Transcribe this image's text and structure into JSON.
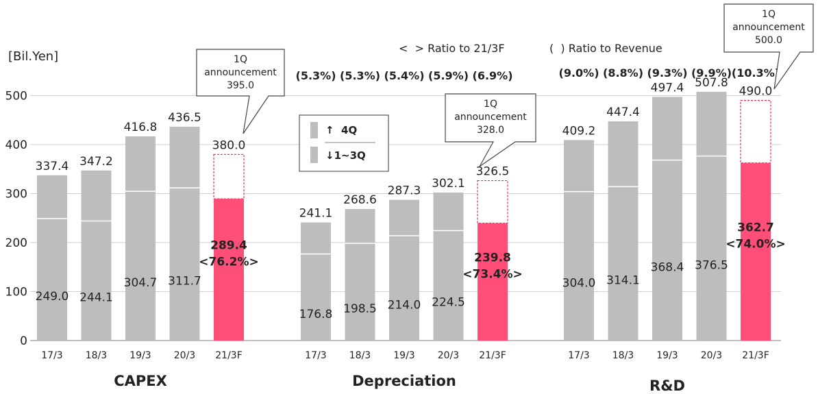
{
  "chart_data": {
    "type": "bar",
    "unit_label": "[Bil.Yen]",
    "y_ticks": [
      "0",
      "100",
      "200",
      "300",
      "400",
      "500"
    ],
    "ylim": [
      0,
      530
    ],
    "grid": true,
    "colors": {
      "past": "#bdbdbd",
      "forecast": "#ff4f79",
      "divider": "#ffffff",
      "forecast_outline": "#e0304a"
    },
    "legend": {
      "ratio_prev": "<  > Ratio to 21/3F",
      "ratio_rev": "(  ) Ratio to Revenue",
      "upper": "↑  4Q",
      "lower": "↓1~3Q"
    },
    "groups": [
      {
        "name": "CAPEX",
        "categories": [
          "17/3",
          "18/3",
          "19/3",
          "20/3",
          "21/3F"
        ],
        "totals": [
          337.4,
          347.2,
          416.8,
          436.5,
          380.0
        ],
        "lower": [
          249.0,
          244.1,
          304.7,
          311.7,
          289.4
        ],
        "forecast_lower_label": "289.4",
        "forecast_ratio": "<76.2%>",
        "ratios": [],
        "callout": {
          "lines": [
            "1Q",
            "announcement",
            "395.0"
          ],
          "value": 395.0
        }
      },
      {
        "name": "Depreciation",
        "categories": [
          "17/3",
          "18/3",
          "19/3",
          "20/3",
          "21/3F"
        ],
        "totals": [
          241.1,
          268.6,
          287.3,
          302.1,
          326.5
        ],
        "lower": [
          176.8,
          198.5,
          214.0,
          224.5,
          239.8
        ],
        "forecast_lower_label": "239.8",
        "forecast_ratio": "<73.4%>",
        "ratios": [
          "(5.3%)",
          "(5.3%)",
          "(5.4%)",
          "(5.9%)",
          "(6.9%)"
        ],
        "callout": {
          "lines": [
            "1Q",
            "announcement",
            "328.0"
          ],
          "value": 328.0
        }
      },
      {
        "name": "R&D",
        "categories": [
          "17/3",
          "18/3",
          "19/3",
          "20/3",
          "21/3F"
        ],
        "totals": [
          409.2,
          447.4,
          497.4,
          507.8,
          490.0
        ],
        "lower": [
          304.0,
          314.1,
          368.4,
          376.5,
          362.7
        ],
        "forecast_lower_label": "362.7",
        "forecast_ratio": "<74.0%>",
        "ratios": [
          "(9.0%)",
          "(8.8%)",
          "(9.3%)",
          "(9.9%)",
          "(10.3%)"
        ],
        "callout": {
          "lines": [
            "1Q",
            "announcement",
            "500.0"
          ],
          "value": 500.0
        }
      }
    ]
  }
}
